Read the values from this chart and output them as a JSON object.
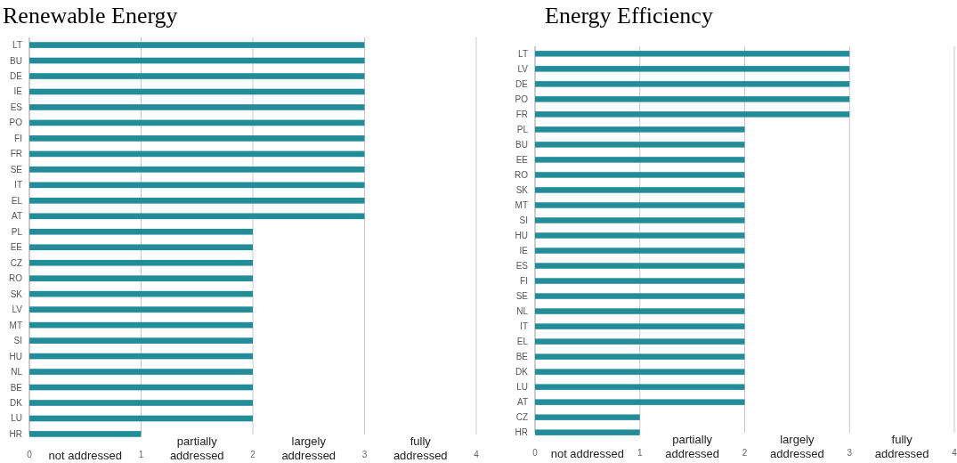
{
  "chart_data": [
    {
      "type": "bar",
      "title": "Renewable Energy",
      "orientation": "horizontal",
      "categories": [
        "LT",
        "BU",
        "DE",
        "IE",
        "ES",
        "PO",
        "FI",
        "FR",
        "SE",
        "IT",
        "EL",
        "AT",
        "PL",
        "EE",
        "CZ",
        "RO",
        "SK",
        "LV",
        "MT",
        "SI",
        "HU",
        "NL",
        "BE",
        "DK",
        "LU",
        "HR"
      ],
      "values": [
        3,
        3,
        3,
        3,
        3,
        3,
        3,
        3,
        3,
        3,
        3,
        3,
        2,
        2,
        2,
        2,
        2,
        2,
        2,
        2,
        2,
        2,
        2,
        2,
        2,
        1
      ],
      "color": "#228c99",
      "xlim": [
        0,
        4
      ],
      "xticks": [
        0,
        1,
        2,
        3,
        4
      ],
      "grid": "x",
      "annotations": [
        "not addressed",
        "partially addressed",
        "largely addressed",
        "fully addressed"
      ]
    },
    {
      "type": "bar",
      "title": "Energy Efficiency",
      "orientation": "horizontal",
      "categories": [
        "LT",
        "LV",
        "DE",
        "PO",
        "FR",
        "PL",
        "BU",
        "EE",
        "RO",
        "SK",
        "MT",
        "SI",
        "HU",
        "IE",
        "ES",
        "FI",
        "SE",
        "NL",
        "IT",
        "EL",
        "BE",
        "DK",
        "LU",
        "AT",
        "CZ",
        "HR"
      ],
      "values": [
        3,
        3,
        3,
        3,
        3,
        2,
        2,
        2,
        2,
        2,
        2,
        2,
        2,
        2,
        2,
        2,
        2,
        2,
        2,
        2,
        2,
        2,
        2,
        2,
        1,
        1
      ],
      "color": "#228c99",
      "xlim": [
        0,
        4
      ],
      "xticks": [
        0,
        1,
        2,
        3,
        4
      ],
      "grid": "x",
      "annotations": [
        "not addressed",
        "partially addressed",
        "largely addressed",
        "fully addressed"
      ]
    }
  ]
}
